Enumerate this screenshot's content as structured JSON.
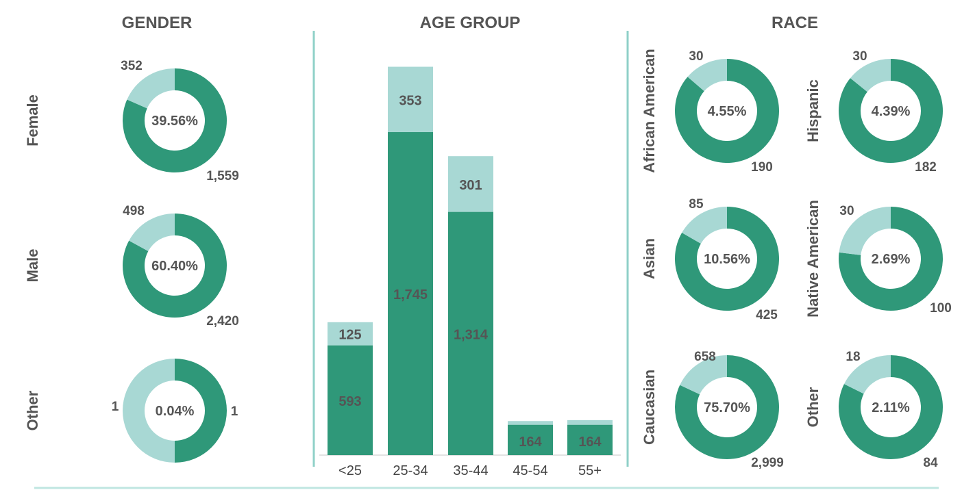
{
  "colors": {
    "dark": "#2f9879",
    "light": "#a8d8d4",
    "divider": "#8fd0c8",
    "text": "#555555"
  },
  "chart_data": [
    {
      "type": "pie",
      "title": "GENDER",
      "panels": [
        {
          "label": "Female",
          "center_label": "39.56%",
          "value_dark": 1559,
          "value_light": 352,
          "dark_text": "1,559",
          "light_text": "352"
        },
        {
          "label": "Male",
          "center_label": "60.40%",
          "value_dark": 2420,
          "value_light": 498,
          "dark_text": "2,420",
          "light_text": "498"
        },
        {
          "label": "Other",
          "center_label": "0.04%",
          "value_dark": 1,
          "value_light": 1,
          "dark_text": "1",
          "light_text": "1"
        }
      ]
    },
    {
      "type": "bar",
      "stacked": true,
      "title": "AGE GROUP",
      "categories": [
        "<25",
        "25-34",
        "35-44",
        "45-54",
        "55+"
      ],
      "series": [
        {
          "values": [
            593,
            1745,
            1314,
            164,
            164
          ],
          "labels": [
            "593",
            "1,745",
            "1,314",
            "164",
            "164"
          ]
        },
        {
          "values": [
            125,
            353,
            301,
            20,
            25
          ],
          "labels": [
            "125",
            "353",
            "301",
            "",
            ""
          ]
        }
      ]
    },
    {
      "type": "pie",
      "title": "RACE",
      "panels": [
        {
          "label": "African American",
          "center_label": "4.55%",
          "value_dark": 190,
          "value_light": 30,
          "dark_text": "190",
          "light_text": "30"
        },
        {
          "label": "Hispanic",
          "center_label": "4.39%",
          "value_dark": 182,
          "value_light": 30,
          "dark_text": "182",
          "light_text": "30"
        },
        {
          "label": "Asian",
          "center_label": "10.56%",
          "value_dark": 425,
          "value_light": 85,
          "dark_text": "425",
          "light_text": "85"
        },
        {
          "label": "Native American",
          "center_label": "2.69%",
          "value_dark": 100,
          "value_light": 30,
          "dark_text": "100",
          "light_text": "30"
        },
        {
          "label": "Caucasian",
          "center_label": "75.70%",
          "value_dark": 2999,
          "value_light": 658,
          "dark_text": "2,999",
          "light_text": "658"
        },
        {
          "label": "Other",
          "center_label": "2.11%",
          "value_dark": 84,
          "value_light": 18,
          "dark_text": "84",
          "light_text": "18"
        }
      ]
    }
  ]
}
